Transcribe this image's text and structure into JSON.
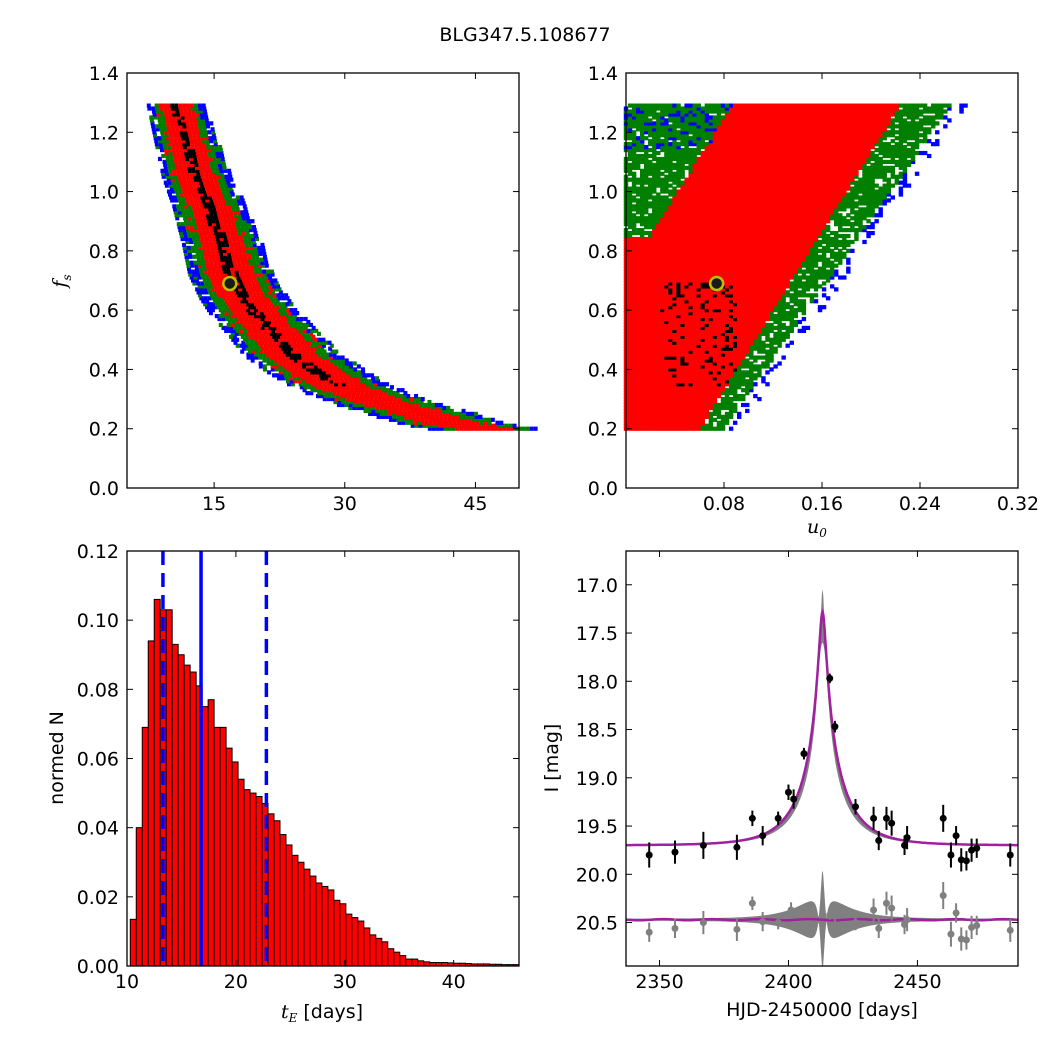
{
  "figure": {
    "title": "BLG347.5.108677"
  },
  "chart_data": [
    {
      "panel": "top-left",
      "type": "heatmap",
      "xlabel": "",
      "ylabel": "f_s",
      "xlim": [
        5,
        50
      ],
      "ylim": [
        0.0,
        1.4
      ],
      "xticks": [
        "15",
        "30",
        "45"
      ],
      "yticks": [
        "0.0",
        "0.2",
        "0.4",
        "0.6",
        "0.8",
        "1.0",
        "1.2",
        "1.4"
      ],
      "levels": [
        "blue",
        "green",
        "red",
        "black"
      ],
      "colors": {
        "blue": "#0000ff",
        "green": "#007f00",
        "red": "#ff0000",
        "black": "#000000",
        "marker_edge": "#bfbf00"
      },
      "ridge": [
        [
          10.5,
          1.3
        ],
        [
          11.5,
          1.2
        ],
        [
          13.0,
          1.05
        ],
        [
          14.5,
          0.95
        ],
        [
          16.0,
          0.82
        ],
        [
          17.0,
          0.72
        ],
        [
          18.5,
          0.64
        ],
        [
          20.0,
          0.58
        ],
        [
          22.0,
          0.52
        ],
        [
          24.0,
          0.45
        ],
        [
          27.0,
          0.39
        ],
        [
          30.0,
          0.34
        ],
        [
          34.0,
          0.29
        ],
        [
          38.0,
          0.26
        ],
        [
          42.0,
          0.22
        ],
        [
          46.0,
          0.2
        ]
      ],
      "best_fit": {
        "x": 16.8,
        "y": 0.69
      }
    },
    {
      "panel": "top-right",
      "type": "heatmap",
      "xlabel": "u_0",
      "ylabel": "",
      "xlim": [
        0.0,
        0.32
      ],
      "ylim": [
        0.0,
        1.4
      ],
      "xticks": [
        "0.08",
        "0.16",
        "0.24",
        "0.32"
      ],
      "yticks": [
        "0.0",
        "0.2",
        "0.4",
        "0.6",
        "0.8",
        "1.0",
        "1.2",
        "1.4"
      ],
      "levels": [
        "blue",
        "green",
        "red",
        "black"
      ],
      "best_fit": {
        "x": 0.074,
        "y": 0.69
      }
    },
    {
      "panel": "bottom-left",
      "type": "bar",
      "xlabel": "t_E [days]",
      "ylabel": "normed N",
      "xlim": [
        10,
        46
      ],
      "ylim": [
        0.0,
        0.12
      ],
      "xticks": [
        "10",
        "20",
        "30",
        "40"
      ],
      "yticks": [
        "0.00",
        "0.02",
        "0.04",
        "0.06",
        "0.08",
        "0.10",
        "0.12"
      ],
      "bin_start": 10.3,
      "bin_width": 0.55,
      "values": [
        0.0135,
        0.04,
        0.069,
        0.094,
        0.106,
        0.103,
        0.103,
        0.093,
        0.09,
        0.087,
        0.085,
        0.081,
        0.075,
        0.077,
        0.069,
        0.069,
        0.063,
        0.059,
        0.054,
        0.051,
        0.05,
        0.049,
        0.047,
        0.044,
        0.042,
        0.038,
        0.035,
        0.032,
        0.03,
        0.028,
        0.026,
        0.024,
        0.023,
        0.022,
        0.019,
        0.018,
        0.015,
        0.014,
        0.013,
        0.011,
        0.009,
        0.008,
        0.007,
        0.005,
        0.004,
        0.003,
        0.002,
        0.002,
        0.0015,
        0.0012,
        0.001,
        0.001,
        0.001,
        0.0009,
        0.0008,
        0.0008,
        0.0007,
        0.0006,
        0.0006,
        0.0006,
        0.0005,
        0.0005,
        0.0004,
        0.0004,
        0.0004,
        0.0003
      ],
      "median": 16.8,
      "percentiles": [
        13.3,
        22.8
      ],
      "colors": {
        "bar": "#ff0000",
        "line": "#0000ff"
      }
    },
    {
      "panel": "bottom-right",
      "type": "scatter",
      "xlabel": "HJD-2450000 [days]",
      "ylabel": "I [mag]",
      "xlim": [
        2337,
        2489
      ],
      "ylim": [
        20.95,
        16.65
      ],
      "xticks": [
        "2350",
        "2400",
        "2450"
      ],
      "yticks": [
        "17.0",
        "17.5",
        "18.0",
        "18.5",
        "19.0",
        "19.5",
        "20.0",
        "20.5"
      ],
      "model": {
        "t0": 2413.2,
        "baseline": 19.7,
        "peak": 17.28,
        "tE": 16.8,
        "u0": 0.074,
        "offset_baseline": 20.47
      },
      "points": [
        {
          "x": 2346,
          "y": 19.8,
          "e": 0.13
        },
        {
          "x": 2356,
          "y": 19.77,
          "e": 0.12
        },
        {
          "x": 2367,
          "y": 19.7,
          "e": 0.14
        },
        {
          "x": 2380,
          "y": 19.72,
          "e": 0.13
        },
        {
          "x": 2386,
          "y": 19.42,
          "e": 0.08
        },
        {
          "x": 2390,
          "y": 19.6,
          "e": 0.1
        },
        {
          "x": 2396,
          "y": 19.42,
          "e": 0.07
        },
        {
          "x": 2400,
          "y": 19.15,
          "e": 0.08
        },
        {
          "x": 2402,
          "y": 19.22,
          "e": 0.1
        },
        {
          "x": 2406,
          "y": 18.75,
          "e": 0.06
        },
        {
          "x": 2416,
          "y": 17.97,
          "e": 0.05
        },
        {
          "x": 2418,
          "y": 18.47,
          "e": 0.06
        },
        {
          "x": 2426,
          "y": 19.3,
          "e": 0.08
        },
        {
          "x": 2433,
          "y": 19.42,
          "e": 0.12
        },
        {
          "x": 2435,
          "y": 19.65,
          "e": 0.1
        },
        {
          "x": 2438,
          "y": 19.42,
          "e": 0.12
        },
        {
          "x": 2440,
          "y": 19.47,
          "e": 0.13
        },
        {
          "x": 2445,
          "y": 19.7,
          "e": 0.1
        },
        {
          "x": 2446,
          "y": 19.62,
          "e": 0.12
        },
        {
          "x": 2460,
          "y": 19.42,
          "e": 0.14
        },
        {
          "x": 2463,
          "y": 19.8,
          "e": 0.13
        },
        {
          "x": 2465,
          "y": 19.6,
          "e": 0.1
        },
        {
          "x": 2467,
          "y": 19.85,
          "e": 0.12
        },
        {
          "x": 2469,
          "y": 19.86,
          "e": 0.1
        },
        {
          "x": 2471,
          "y": 19.75,
          "e": 0.12
        },
        {
          "x": 2473,
          "y": 19.73,
          "e": 0.1
        },
        {
          "x": 2486,
          "y": 19.8,
          "e": 0.12
        }
      ],
      "residuals": [
        {
          "x": 2346,
          "y": 20.6,
          "e": 0.1
        },
        {
          "x": 2356,
          "y": 20.56,
          "e": 0.1
        },
        {
          "x": 2367,
          "y": 20.5,
          "e": 0.12
        },
        {
          "x": 2380,
          "y": 20.57,
          "e": 0.12
        },
        {
          "x": 2386,
          "y": 20.3,
          "e": 0.07
        },
        {
          "x": 2390,
          "y": 20.49,
          "e": 0.1
        },
        {
          "x": 2396,
          "y": 20.5,
          "e": 0.07
        },
        {
          "x": 2401,
          "y": 20.37,
          "e": 0.08
        },
        {
          "x": 2406,
          "y": 20.55,
          "e": 0.07
        },
        {
          "x": 2416,
          "y": 20.42,
          "e": 0.05
        },
        {
          "x": 2418,
          "y": 20.43,
          "e": 0.06
        },
        {
          "x": 2426,
          "y": 20.5,
          "e": 0.08
        },
        {
          "x": 2433,
          "y": 20.37,
          "e": 0.12
        },
        {
          "x": 2435,
          "y": 20.56,
          "e": 0.1
        },
        {
          "x": 2438,
          "y": 20.3,
          "e": 0.12
        },
        {
          "x": 2440,
          "y": 20.35,
          "e": 0.13
        },
        {
          "x": 2445,
          "y": 20.52,
          "e": 0.1
        },
        {
          "x": 2446,
          "y": 20.47,
          "e": 0.12
        },
        {
          "x": 2460,
          "y": 20.22,
          "e": 0.14
        },
        {
          "x": 2463,
          "y": 20.62,
          "e": 0.13
        },
        {
          "x": 2465,
          "y": 20.4,
          "e": 0.1
        },
        {
          "x": 2467,
          "y": 20.67,
          "e": 0.12
        },
        {
          "x": 2469,
          "y": 20.68,
          "e": 0.1
        },
        {
          "x": 2471,
          "y": 20.55,
          "e": 0.12
        },
        {
          "x": 2473,
          "y": 20.53,
          "e": 0.1
        },
        {
          "x": 2486,
          "y": 20.58,
          "e": 0.12
        }
      ],
      "colors": {
        "data": "#000000",
        "residual": "#808080",
        "model": "#a020a0",
        "band": "#808080"
      }
    }
  ]
}
